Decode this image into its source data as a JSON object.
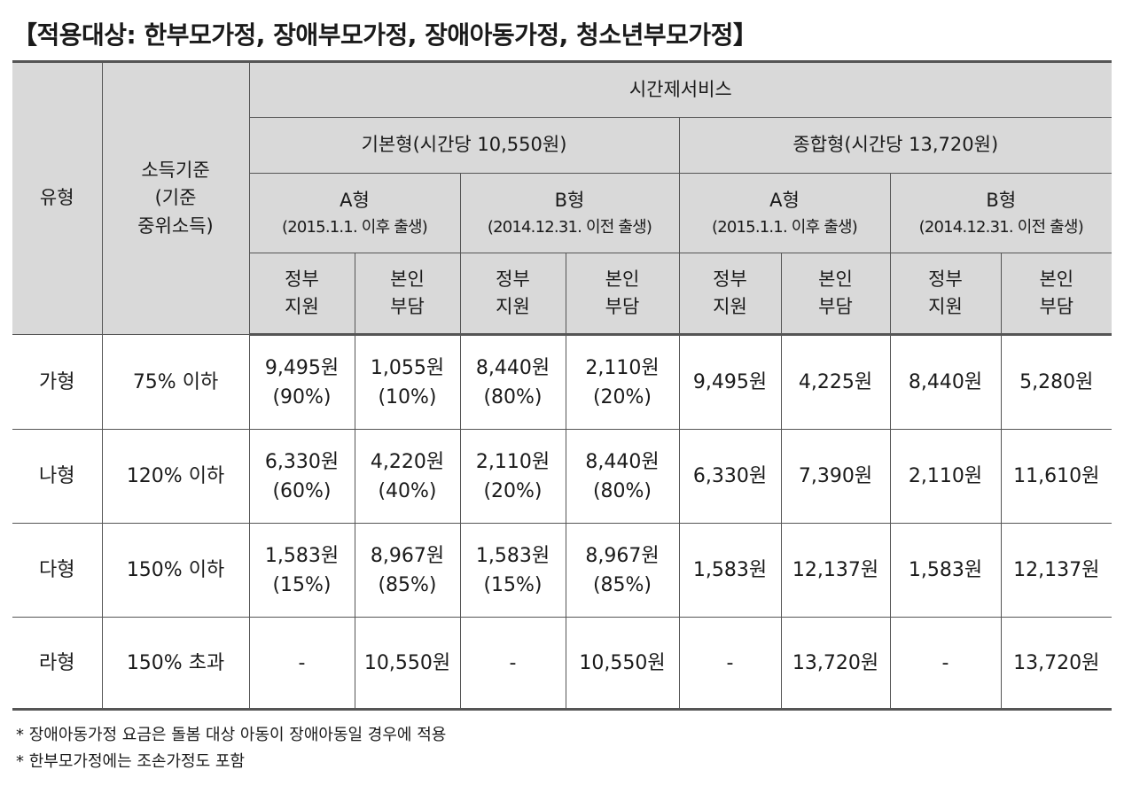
{
  "title": "【적용대상: 한부모가정, 장애부모가정, 장애아동가정, 청소년부모가정】",
  "header": {
    "type": "유형",
    "income_line1": "소득기준",
    "income_line2": "(기준",
    "income_line3": "중위소득)",
    "service": "시간제서비스",
    "basic": "기본형(시간당 10,550원)",
    "comprehensive": "종합형(시간당 13,720원)",
    "a_type": "A형",
    "a_sub": "(2015.1.1. 이후 출생)",
    "b_type": "B형",
    "b_sub": "(2014.12.31. 이전 출생)",
    "gov_line1": "정부",
    "gov_line2": "지원",
    "self_line1": "본인",
    "self_line2": "부담"
  },
  "rows": [
    {
      "type": "가형",
      "income": "75% 이하",
      "basic": [
        {
          "amount": "9,495원",
          "pct": "(90%)"
        },
        {
          "amount": "1,055원",
          "pct": "(10%)"
        },
        {
          "amount": "8,440원",
          "pct": "(80%)"
        },
        {
          "amount": "2,110원",
          "pct": "(20%)"
        }
      ],
      "comp": [
        "9,495원",
        "4,225원",
        "8,440원",
        "5,280원"
      ]
    },
    {
      "type": "나형",
      "income": "120% 이하",
      "basic": [
        {
          "amount": "6,330원",
          "pct": "(60%)"
        },
        {
          "amount": "4,220원",
          "pct": "(40%)"
        },
        {
          "amount": "2,110원",
          "pct": "(20%)"
        },
        {
          "amount": "8,440원",
          "pct": "(80%)"
        }
      ],
      "comp": [
        "6,330원",
        "7,390원",
        "2,110원",
        "11,610원"
      ]
    },
    {
      "type": "다형",
      "income": "150% 이하",
      "basic": [
        {
          "amount": "1,583원",
          "pct": "(15%)"
        },
        {
          "amount": "8,967원",
          "pct": "(85%)"
        },
        {
          "amount": "1,583원",
          "pct": "(15%)"
        },
        {
          "amount": "8,967원",
          "pct": "(85%)"
        }
      ],
      "comp": [
        "1,583원",
        "12,137원",
        "1,583원",
        "12,137원"
      ]
    },
    {
      "type": "라형",
      "income": "150% 초과",
      "basic": [
        {
          "amount": "-",
          "pct": ""
        },
        {
          "amount": "10,550원",
          "pct": ""
        },
        {
          "amount": "-",
          "pct": ""
        },
        {
          "amount": "10,550원",
          "pct": ""
        }
      ],
      "comp": [
        "-",
        "13,720원",
        "-",
        "13,720원"
      ]
    }
  ],
  "notes": [
    "* 장애아동가정 요금은 돌봄 대상 아동이 장애아동일 경우에 적용",
    "* 한부모가정에는 조손가정도 포함"
  ]
}
